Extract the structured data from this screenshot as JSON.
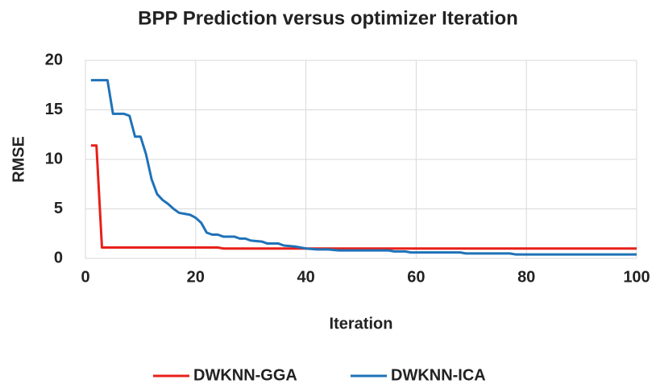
{
  "chart_data": {
    "type": "line",
    "title": "BPP Prediction versus optimizer Iteration",
    "x_label": "Iteration",
    "y_label": "RMSE",
    "xlim": [
      0,
      100
    ],
    "xticks": [
      0,
      20,
      40,
      60,
      80,
      100
    ],
    "ylim": [
      0,
      20
    ],
    "yticks": [
      0,
      5,
      10,
      15,
      20
    ],
    "grid": true,
    "legend": "bottom",
    "series": [
      {
        "name": "DWKNN-GGA",
        "color": "#e8201a",
        "x": [
          1,
          2,
          3,
          24,
          25,
          100
        ],
        "values": [
          11.4,
          11.4,
          1.1,
          1.1,
          1.0,
          1.0
        ]
      },
      {
        "name": "DWKNN-ICA",
        "color": "#1f72b8",
        "x": [
          1,
          4,
          5,
          7,
          8,
          9,
          10,
          11,
          12,
          13,
          14,
          15,
          16,
          17,
          18,
          19,
          20,
          21,
          22,
          23,
          24,
          25,
          27,
          28,
          29,
          30,
          32,
          33,
          35,
          36,
          38,
          40,
          42,
          44,
          46,
          55,
          56,
          58,
          59,
          68,
          69,
          77,
          78,
          100
        ],
        "values": [
          18,
          18,
          14.6,
          14.6,
          14.4,
          12.3,
          12.3,
          10.5,
          8,
          6.5,
          5.9,
          5.5,
          5,
          4.6,
          4.5,
          4.4,
          4.1,
          3.6,
          2.6,
          2.4,
          2.4,
          2.2,
          2.2,
          2.0,
          2.0,
          1.8,
          1.7,
          1.5,
          1.5,
          1.3,
          1.2,
          1.0,
          0.9,
          0.9,
          0.8,
          0.8,
          0.7,
          0.7,
          0.6,
          0.6,
          0.5,
          0.5,
          0.4,
          0.4
        ]
      }
    ]
  }
}
